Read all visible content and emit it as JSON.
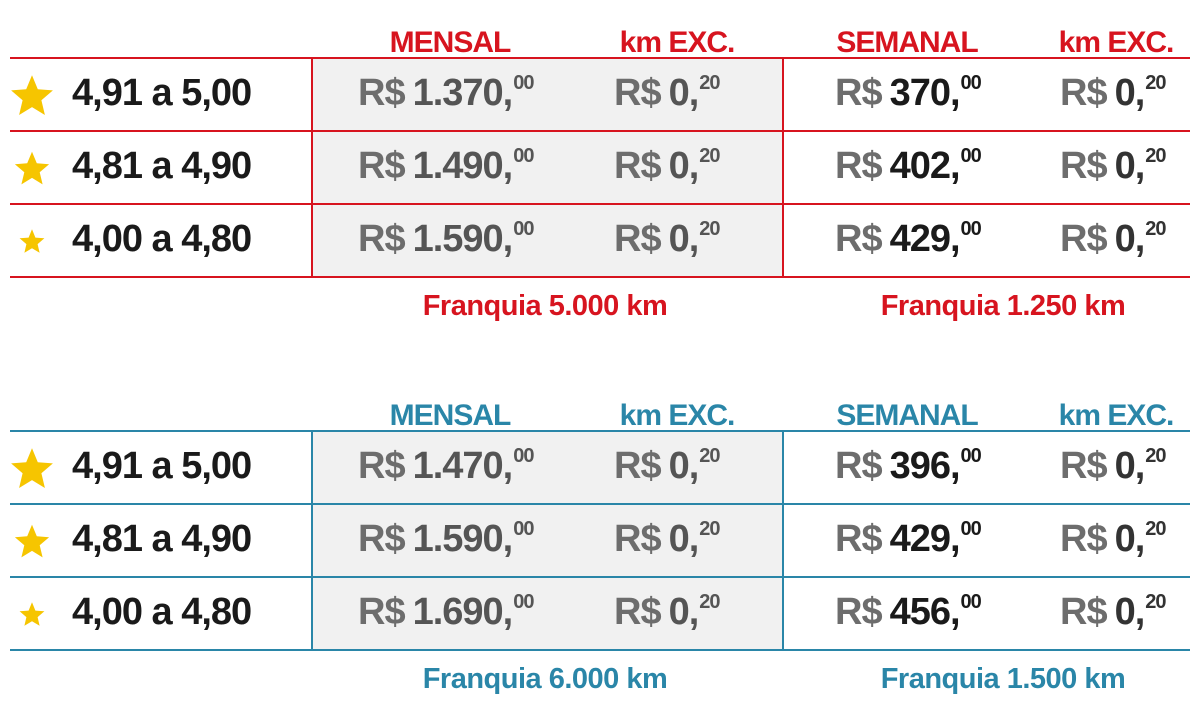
{
  "tables": [
    {
      "color": "#d7141f",
      "headers": {
        "monthly": "MENSAL",
        "monthly_km": "km EXC.",
        "weekly": "SEMANAL",
        "weekly_km": "km EXC."
      },
      "rows": [
        {
          "range": "4,91 a 5,00",
          "monthly": {
            "currency": "R$",
            "amount": "1.370,",
            "cents": "00"
          },
          "monthly_km": {
            "currency": "R$",
            "amount": "0,",
            "cents": "20"
          },
          "weekly": {
            "currency": "R$",
            "amount": "370,",
            "cents": "00"
          },
          "weekly_km": {
            "currency": "R$",
            "amount": "0,",
            "cents": "20"
          }
        },
        {
          "range": "4,81 a 4,90",
          "monthly": {
            "currency": "R$",
            "amount": "1.490,",
            "cents": "00"
          },
          "monthly_km": {
            "currency": "R$",
            "amount": "0,",
            "cents": "20"
          },
          "weekly": {
            "currency": "R$",
            "amount": "402,",
            "cents": "00"
          },
          "weekly_km": {
            "currency": "R$",
            "amount": "0,",
            "cents": "20"
          }
        },
        {
          "range": "4,00 a 4,80",
          "monthly": {
            "currency": "R$",
            "amount": "1.590,",
            "cents": "00"
          },
          "monthly_km": {
            "currency": "R$",
            "amount": "0,",
            "cents": "20"
          },
          "weekly": {
            "currency": "R$",
            "amount": "429,",
            "cents": "00"
          },
          "weekly_km": {
            "currency": "R$",
            "amount": "0,",
            "cents": "20"
          }
        }
      ],
      "footers": {
        "monthly": "Franquia 5.000 km",
        "weekly": "Franquia 1.250 km"
      }
    },
    {
      "color": "#2a86a8",
      "headers": {
        "monthly": "MENSAL",
        "monthly_km": "km EXC.",
        "weekly": "SEMANAL",
        "weekly_km": "km EXC."
      },
      "rows": [
        {
          "range": "4,91 a 5,00",
          "monthly": {
            "currency": "R$",
            "amount": "1.470,",
            "cents": "00"
          },
          "monthly_km": {
            "currency": "R$",
            "amount": "0,",
            "cents": "20"
          },
          "weekly": {
            "currency": "R$",
            "amount": "396,",
            "cents": "00"
          },
          "weekly_km": {
            "currency": "R$",
            "amount": "0,",
            "cents": "20"
          }
        },
        {
          "range": "4,81 a 4,90",
          "monthly": {
            "currency": "R$",
            "amount": "1.590,",
            "cents": "00"
          },
          "monthly_km": {
            "currency": "R$",
            "amount": "0,",
            "cents": "20"
          },
          "weekly": {
            "currency": "R$",
            "amount": "429,",
            "cents": "00"
          },
          "weekly_km": {
            "currency": "R$",
            "amount": "0,",
            "cents": "20"
          }
        },
        {
          "range": "4,00 a 4,80",
          "monthly": {
            "currency": "R$",
            "amount": "1.690,",
            "cents": "00"
          },
          "monthly_km": {
            "currency": "R$",
            "amount": "0,",
            "cents": "20"
          },
          "weekly": {
            "currency": "R$",
            "amount": "456,",
            "cents": "00"
          },
          "weekly_km": {
            "currency": "R$",
            "amount": "0,",
            "cents": "20"
          }
        }
      ],
      "footers": {
        "monthly": "Franquia 6.000 km",
        "weekly": "Franquia 1.500 km"
      }
    }
  ]
}
